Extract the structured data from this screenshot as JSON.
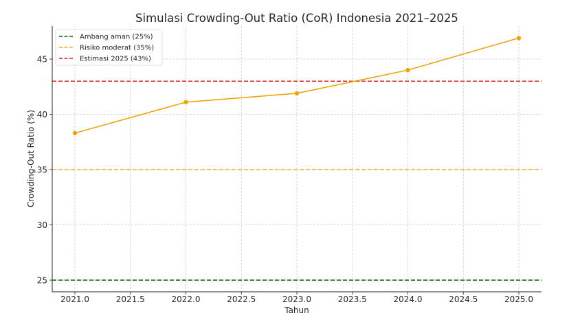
{
  "chart_data": {
    "type": "line",
    "title": "Simulasi Crowding-Out Ratio (CoR) Indonesia 2021–2025",
    "xlabel": "Tahun",
    "ylabel": "Crowding-Out Ratio (%)",
    "xlim": [
      2020.8,
      2025.2
    ],
    "ylim": [
      24,
      48
    ],
    "x_ticks": [
      2021.0,
      2021.5,
      2022.0,
      2022.5,
      2023.0,
      2023.5,
      2024.0,
      2024.5,
      2025.0
    ],
    "x_tick_labels": [
      "2021.0",
      "2021.5",
      "2022.0",
      "2022.5",
      "2023.0",
      "2023.5",
      "2024.0",
      "2024.5",
      "2025.0"
    ],
    "y_ticks": [
      25,
      30,
      35,
      40,
      45
    ],
    "y_tick_labels": [
      "25",
      "30",
      "35",
      "40",
      "45"
    ],
    "grid": true,
    "legend_position": "top-left",
    "series": [
      {
        "name": "CoR",
        "x": [
          2021,
          2022,
          2023,
          2024,
          2025
        ],
        "values": [
          38.3,
          41.1,
          41.9,
          44.0,
          46.9
        ],
        "color": "#f0a30a",
        "marker": "circle"
      }
    ],
    "reference_lines": [
      {
        "label": "Ambang aman (25%)",
        "y": 25,
        "color": "#006400",
        "style": "dashed"
      },
      {
        "label": "Risiko moderat (35%)",
        "y": 35,
        "color": "#f5a623",
        "style": "dashed"
      },
      {
        "label": "Estimasi 2025 (43%)",
        "y": 43,
        "color": "#d62728",
        "style": "dashed"
      }
    ]
  }
}
